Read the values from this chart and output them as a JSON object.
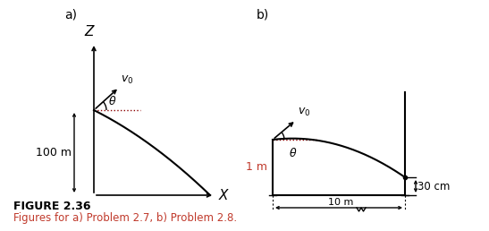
{
  "fig_label_a": "a)",
  "fig_label_b": "b)",
  "figure_title": "FIGURE 2.36",
  "figure_subtitle": "Figures for a) Problem 2.7, b) Problem 2.8.",
  "title_color": "#000000",
  "subtitle_color": "#c0392b",
  "bg_color": "#ffffff",
  "line_color": "#000000",
  "dotted_color": "#8B0000",
  "label_100m": "100 m",
  "label_1m": "1 m",
  "label_10m": "10 m",
  "label_30cm": "30 cm",
  "label_v0": "$v_0$",
  "label_theta": "$\\theta$",
  "label_X": "$X$",
  "label_Z": "$Z$"
}
